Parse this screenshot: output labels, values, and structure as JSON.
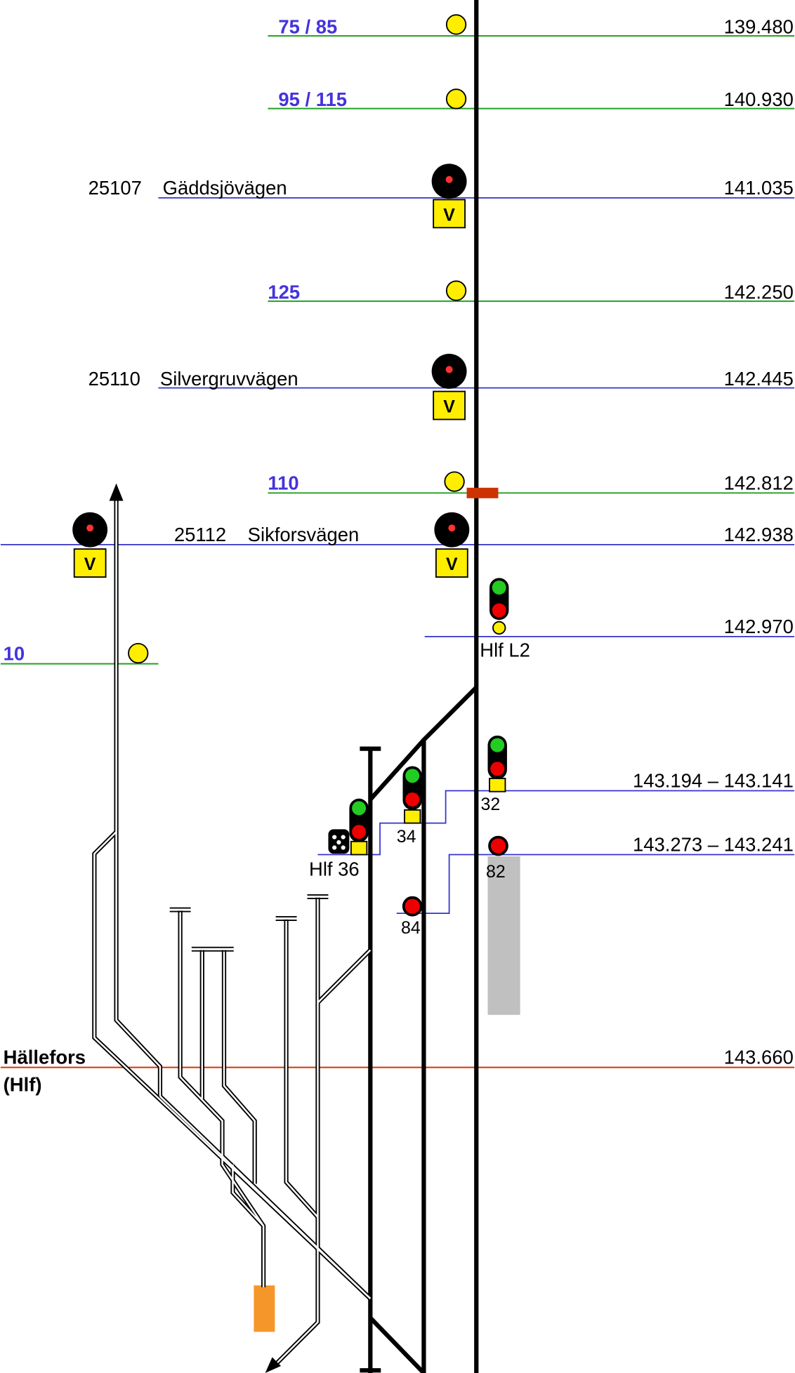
{
  "speed_limits": [
    {
      "label": "75 / 85",
      "km": "139.480"
    },
    {
      "label": "95 / 115",
      "km": "140.930"
    },
    {
      "label": "125",
      "km": "142.250"
    },
    {
      "label": "110",
      "km": "142.812"
    },
    {
      "label": "10"
    }
  ],
  "crossings": [
    {
      "number": "25107",
      "name": "Gäddsjövägen",
      "km": "141.035"
    },
    {
      "number": "25110",
      "name": "Silvergruvvägen",
      "km": "142.445"
    },
    {
      "number": "25112",
      "name": "Sikforsvägen",
      "km": "142.938"
    }
  ],
  "crossing_sign": "V",
  "signals": [
    {
      "name": "Hlf L2",
      "km": "142.970"
    },
    {
      "name": "32"
    },
    {
      "name": "34"
    },
    {
      "name": "Hlf 36"
    },
    {
      "name": "82"
    },
    {
      "name": "84"
    }
  ],
  "block_km": [
    "143.194 – 143.141",
    "143.273 – 143.241"
  ],
  "station": {
    "name": "Hällefors",
    "code": "(Hlf)",
    "km": "143.660"
  }
}
